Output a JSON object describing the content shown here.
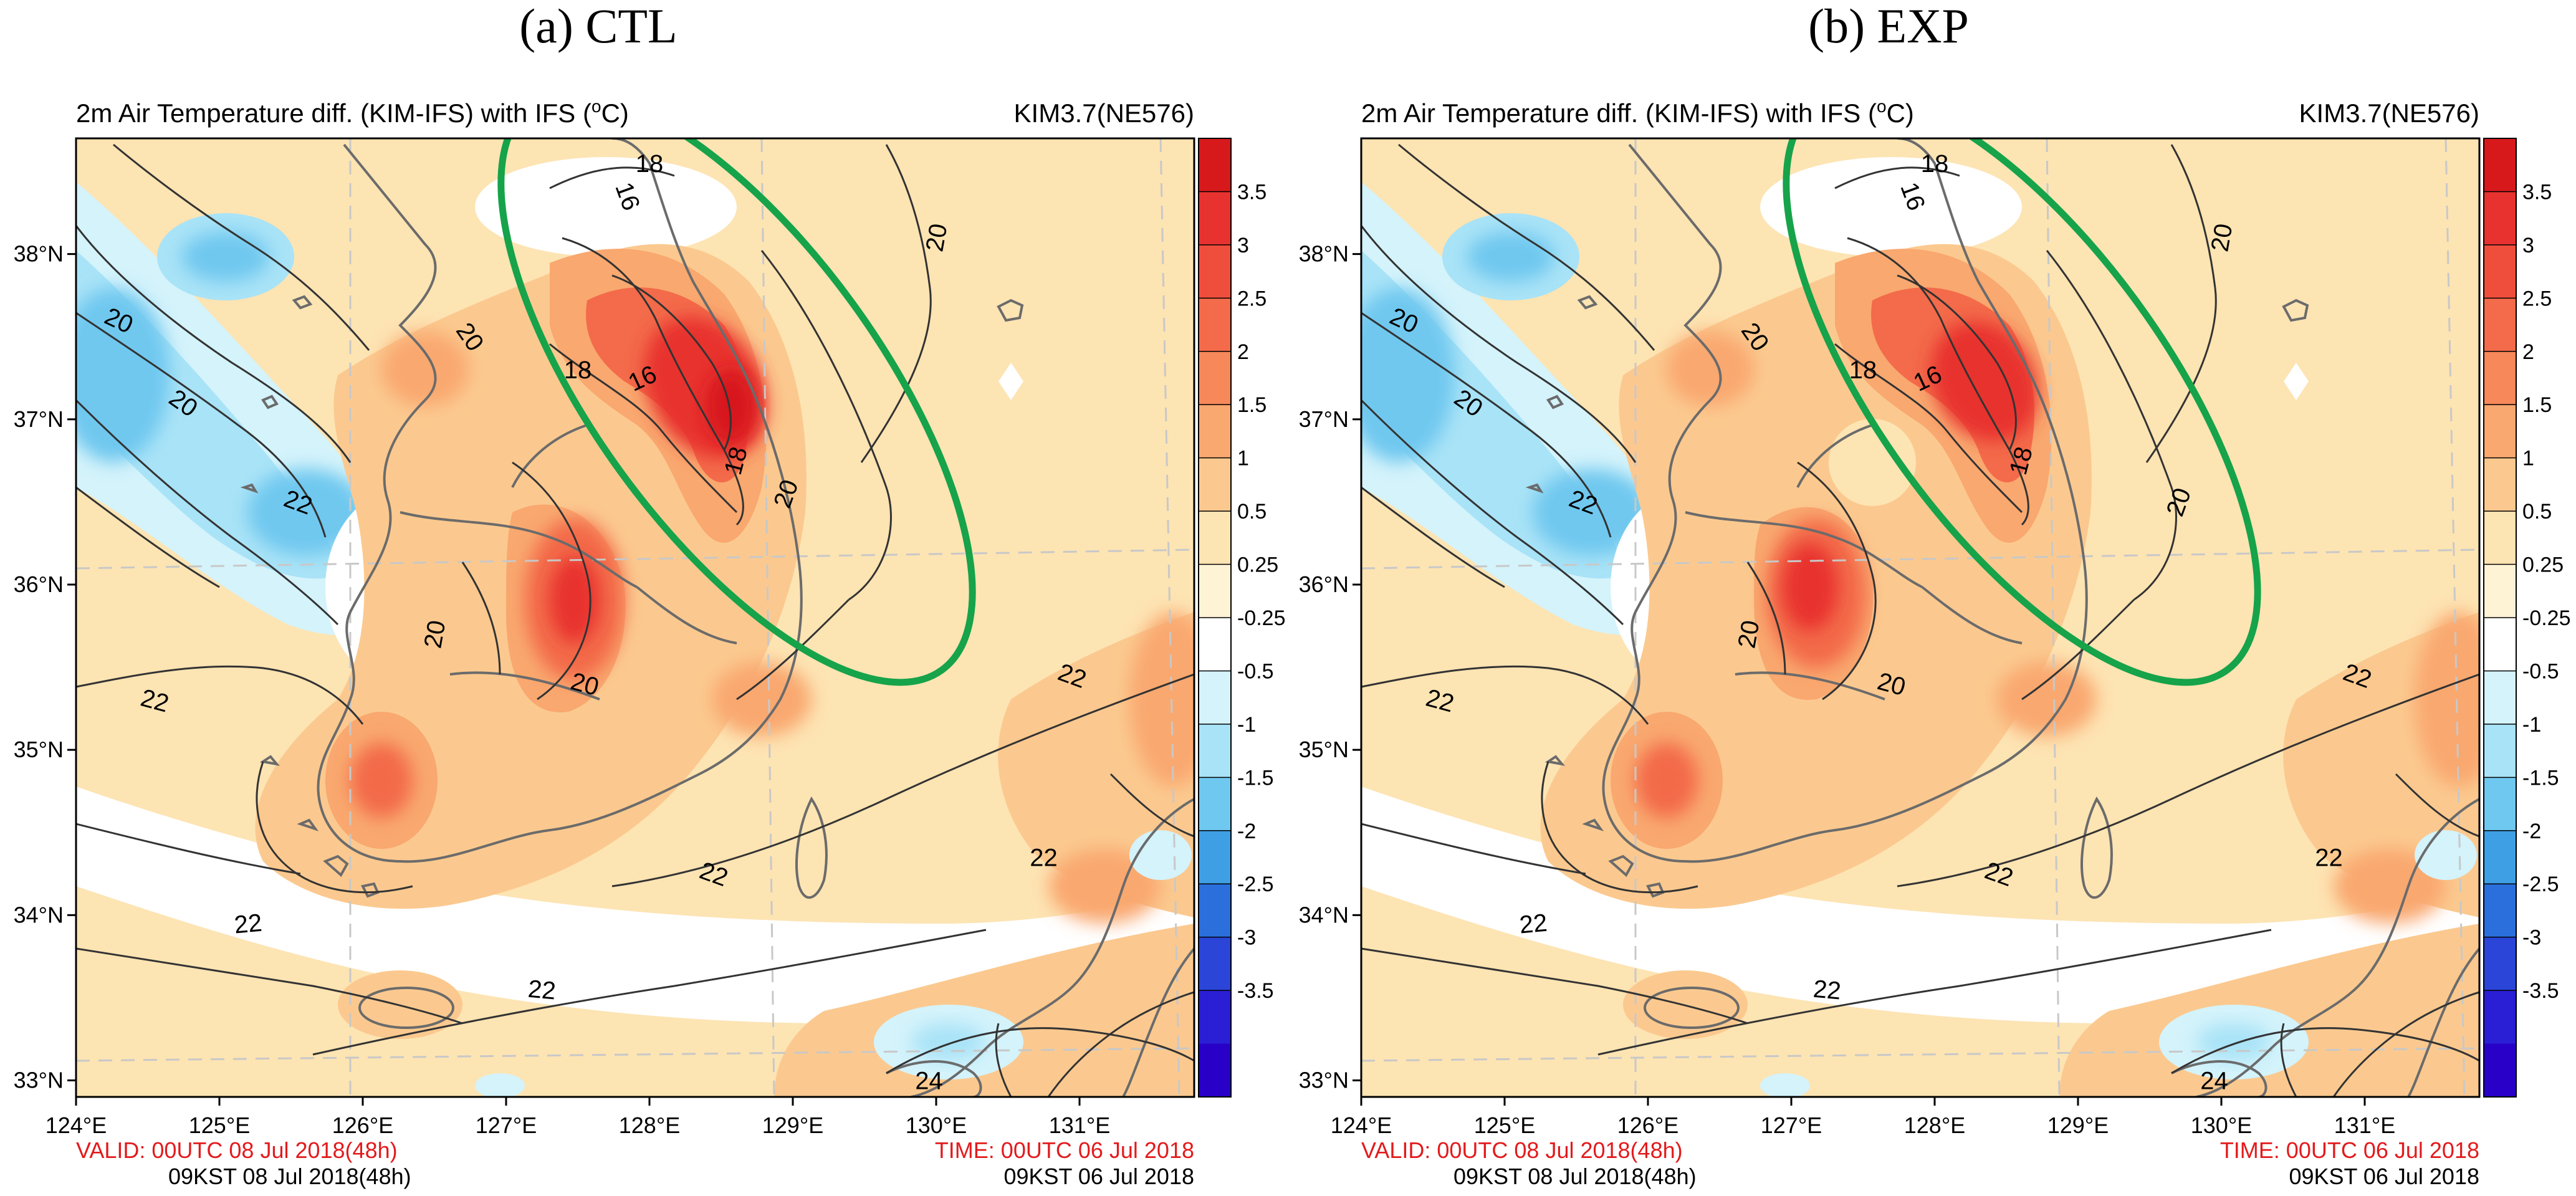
{
  "panels": [
    {
      "id": "ctl",
      "heading": "(a) CTL",
      "title_left": "2m Air Temperature diff. (KIM-IFS) with IFS (",
      "title_sup": "o",
      "title_right": "C)",
      "model": "KIM3.7(NE576)",
      "valid": "VALID: 00UTC 08 Jul 2018(48h)",
      "valid_kst": "09KST 08 Jul 2018(48h)",
      "time": "TIME: 00UTC 06 Jul 2018",
      "time_kst": "09KST 06 Jul 2018"
    },
    {
      "id": "exp",
      "heading": "(b) EXP",
      "title_left": "2m Air Temperature diff. (KIM-IFS) with IFS (",
      "title_sup": "o",
      "title_right": "C)",
      "model": "KIM3.7(NE576)",
      "valid": "VALID: 00UTC 08 Jul 2018(48h)",
      "valid_kst": "09KST 08 Jul 2018(48h)",
      "time": "TIME: 00UTC 06 Jul 2018",
      "time_kst": "09KST 06 Jul 2018"
    }
  ],
  "map": {
    "lon_ticks": [
      "124°E",
      "125°E",
      "126°E",
      "127°E",
      "128°E",
      "129°E",
      "130°E",
      "131°E"
    ],
    "lat_ticks": [
      "38°N",
      "37°N",
      "36°N",
      "35°N",
      "34°N",
      "33°N"
    ],
    "lon_range": [
      124,
      131.8
    ],
    "lat_range": [
      32.9,
      38.7
    ],
    "contour_labels": {
      "ctl": [
        {
          "text": "20",
          "lon": 124.3,
          "lat": 37.6,
          "rot": 25
        },
        {
          "text": "20",
          "lon": 124.75,
          "lat": 37.1,
          "rot": 35
        },
        {
          "text": "22",
          "lon": 125.55,
          "lat": 36.5,
          "rot": 20
        },
        {
          "text": "20",
          "lon": 126.75,
          "lat": 37.5,
          "rot": 55
        },
        {
          "text": "18",
          "lon": 128.0,
          "lat": 38.55,
          "rot": 0
        },
        {
          "text": "16",
          "lon": 127.85,
          "lat": 38.35,
          "rot": 70
        },
        {
          "text": "18",
          "lon": 127.5,
          "lat": 37.3,
          "rot": 0
        },
        {
          "text": "16",
          "lon": 127.95,
          "lat": 37.25,
          "rot": -25
        },
        {
          "text": "18",
          "lon": 128.6,
          "lat": 36.75,
          "rot": -75
        },
        {
          "text": "20",
          "lon": 128.95,
          "lat": 36.55,
          "rot": -70
        },
        {
          "text": "20",
          "lon": 130.0,
          "lat": 38.1,
          "rot": -80
        },
        {
          "text": "20",
          "lon": 126.5,
          "lat": 35.7,
          "rot": -80
        },
        {
          "text": "20",
          "lon": 127.55,
          "lat": 35.4,
          "rot": 15
        },
        {
          "text": "22",
          "lon": 124.55,
          "lat": 35.3,
          "rot": 15
        },
        {
          "text": "22",
          "lon": 125.2,
          "lat": 33.95,
          "rot": -5
        },
        {
          "text": "22",
          "lon": 127.25,
          "lat": 33.55,
          "rot": 5
        },
        {
          "text": "22",
          "lon": 128.45,
          "lat": 34.25,
          "rot": 20
        },
        {
          "text": "22",
          "lon": 130.95,
          "lat": 35.45,
          "rot": 20
        },
        {
          "text": "22",
          "lon": 130.75,
          "lat": 34.35,
          "rot": 0
        },
        {
          "text": "24",
          "lon": 129.95,
          "lat": 33.0,
          "rot": 0
        }
      ],
      "exp": [
        {
          "text": "20",
          "lon": 124.3,
          "lat": 37.6,
          "rot": 25
        },
        {
          "text": "20",
          "lon": 124.75,
          "lat": 37.1,
          "rot": 35
        },
        {
          "text": "22",
          "lon": 125.55,
          "lat": 36.5,
          "rot": 20
        },
        {
          "text": "20",
          "lon": 126.75,
          "lat": 37.5,
          "rot": 55
        },
        {
          "text": "18",
          "lon": 128.0,
          "lat": 38.55,
          "rot": 0
        },
        {
          "text": "16",
          "lon": 127.85,
          "lat": 38.35,
          "rot": 70
        },
        {
          "text": "18",
          "lon": 127.5,
          "lat": 37.3,
          "rot": 0
        },
        {
          "text": "16",
          "lon": 127.95,
          "lat": 37.25,
          "rot": -25
        },
        {
          "text": "18",
          "lon": 128.6,
          "lat": 36.75,
          "rot": -75
        },
        {
          "text": "20",
          "lon": 130.0,
          "lat": 38.1,
          "rot": -80
        },
        {
          "text": "20",
          "lon": 129.7,
          "lat": 36.5,
          "rot": -70
        },
        {
          "text": "20",
          "lon": 126.7,
          "lat": 35.7,
          "rot": -80
        },
        {
          "text": "20",
          "lon": 127.7,
          "lat": 35.4,
          "rot": 15
        },
        {
          "text": "22",
          "lon": 124.55,
          "lat": 35.3,
          "rot": 15
        },
        {
          "text": "22",
          "lon": 125.2,
          "lat": 33.95,
          "rot": -5
        },
        {
          "text": "22",
          "lon": 127.25,
          "lat": 33.55,
          "rot": 5
        },
        {
          "text": "22",
          "lon": 128.45,
          "lat": 34.25,
          "rot": 20
        },
        {
          "text": "22",
          "lon": 130.95,
          "lat": 35.45,
          "rot": 20
        },
        {
          "text": "22",
          "lon": 130.75,
          "lat": 34.35,
          "rot": 0
        },
        {
          "text": "24",
          "lon": 129.95,
          "lat": 33.0,
          "rot": 0
        }
      ]
    }
  },
  "colorbar": {
    "labels": [
      "3.5",
      "3",
      "2.5",
      "2",
      "1.5",
      "1",
      "0.5",
      "0.25",
      "-0.25",
      "-0.5",
      "-1",
      "-1.5",
      "-2",
      "-2.5",
      "-3",
      "-3.5"
    ],
    "colors": [
      "#d7191c",
      "#e8322f",
      "#f04e3c",
      "#f36b4a",
      "#f6885a",
      "#f9a86f",
      "#fbc98f",
      "#fde4b3",
      "#fff3d6",
      "#ffffff",
      "#d4f3fb",
      "#a9e3f7",
      "#6fc8ef",
      "#3f9fe5",
      "#2b6fdd",
      "#2a45d8",
      "#2a1fd4",
      "#2800c8"
    ]
  },
  "colors": {
    "highlight_ellipse": "#16a34a",
    "warm_anomaly": "#f36b4a",
    "cold_anomaly": "#6fc8ef",
    "coast": "#6b6b6b",
    "contour": "#333333"
  }
}
